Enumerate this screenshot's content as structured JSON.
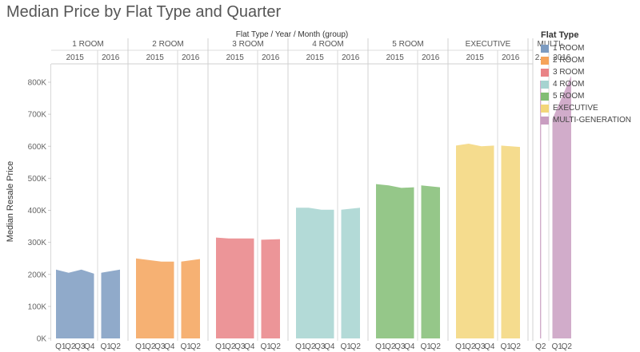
{
  "title": "Median Price by Flat Type and Quarter",
  "legend": {
    "title": "Flat Type",
    "items": [
      {
        "label": "1 ROOM",
        "color": "#7c9bc1"
      },
      {
        "label": "2 ROOM",
        "color": "#f5a35a"
      },
      {
        "label": "3 ROOM",
        "color": "#e98386"
      },
      {
        "label": "4 ROOM",
        "color": "#a6d3d0"
      },
      {
        "label": "5 ROOM",
        "color": "#82bd74"
      },
      {
        "label": "EXECUTIVE",
        "color": "#f3d67a"
      },
      {
        "label": "MULTI-GENERATION",
        "color": "#c99ec1"
      }
    ]
  },
  "chart_data": {
    "type": "area",
    "title": "Median Price by Flat Type and Quarter",
    "column_header": "Flat Type / Year / Month (group)",
    "ylabel": "Median Resale Price",
    "ylim": [
      0,
      850000
    ],
    "yticks": [
      0,
      100000,
      200000,
      300000,
      400000,
      500000,
      600000,
      700000,
      800000
    ],
    "ytick_labels": [
      "0K",
      "100K",
      "200K",
      "300K",
      "400K",
      "500K",
      "600K",
      "700K",
      "800K"
    ],
    "grid": false,
    "legend_position": "right",
    "panels": [
      {
        "flat_type": "1 ROOM",
        "header": "1 ROOM",
        "color": "#7c9bc1",
        "years": [
          {
            "year": "2015",
            "quarters": [
              "Q1",
              "Q2",
              "Q3",
              "Q4"
            ],
            "values": [
              215000,
              205000,
              215000,
              202000
            ]
          },
          {
            "year": "2016",
            "quarters": [
              "Q1",
              "Q2"
            ],
            "values": [
              205000,
              215000
            ]
          }
        ]
      },
      {
        "flat_type": "2 ROOM",
        "header": "2 ROOM",
        "color": "#f5a35a",
        "years": [
          {
            "year": "2015",
            "quarters": [
              "Q1",
              "Q2",
              "Q3",
              "Q4"
            ],
            "values": [
              250000,
              245000,
              240000,
              240000
            ]
          },
          {
            "year": "2016",
            "quarters": [
              "Q1",
              "Q2"
            ],
            "values": [
              240000,
              248000
            ]
          }
        ]
      },
      {
        "flat_type": "3 ROOM",
        "header": "3 ROOM",
        "color": "#e98386",
        "years": [
          {
            "year": "2015",
            "quarters": [
              "Q1",
              "Q2",
              "Q3",
              "Q4"
            ],
            "values": [
              315000,
              312000,
              312000,
              312000
            ]
          },
          {
            "year": "2016",
            "quarters": [
              "Q1",
              "Q2"
            ],
            "values": [
              308000,
              310000
            ]
          }
        ]
      },
      {
        "flat_type": "4 ROOM",
        "header": "4 ROOM",
        "color": "#a6d3d0",
        "years": [
          {
            "year": "2015",
            "quarters": [
              "Q1",
              "Q2",
              "Q3",
              "Q4"
            ],
            "values": [
              408000,
              408000,
              402000,
              402000
            ]
          },
          {
            "year": "2016",
            "quarters": [
              "Q1",
              "Q2"
            ],
            "values": [
              402000,
              408000
            ]
          }
        ]
      },
      {
        "flat_type": "5 ROOM",
        "header": "5 ROOM",
        "color": "#82bd74",
        "years": [
          {
            "year": "2015",
            "quarters": [
              "Q1",
              "Q2",
              "Q3",
              "Q4"
            ],
            "values": [
              482000,
              478000,
              470000,
              472000
            ]
          },
          {
            "year": "2016",
            "quarters": [
              "Q1",
              "Q2"
            ],
            "values": [
              478000,
              472000
            ]
          }
        ]
      },
      {
        "flat_type": "EXECUTIVE",
        "header": "EXECUTIVE",
        "color": "#f3d67a",
        "years": [
          {
            "year": "2015",
            "quarters": [
              "Q1",
              "Q2",
              "Q3",
              "Q4"
            ],
            "values": [
              602000,
              608000,
              600000,
              602000
            ]
          },
          {
            "year": "2016",
            "quarters": [
              "Q1",
              "Q2"
            ],
            "values": [
              602000,
              598000
            ]
          }
        ]
      },
      {
        "flat_type": "MULTI-GENERATION",
        "header": "MULTI-...",
        "color": "#c99ec1",
        "years": [
          {
            "year": "2...",
            "quarters": [
              "Q2"
            ],
            "values": [
              805000
            ]
          },
          {
            "year": "2016",
            "quarters": [
              "Q1",
              "Q2"
            ],
            "values": [
              685000,
              820000
            ]
          }
        ]
      }
    ]
  }
}
